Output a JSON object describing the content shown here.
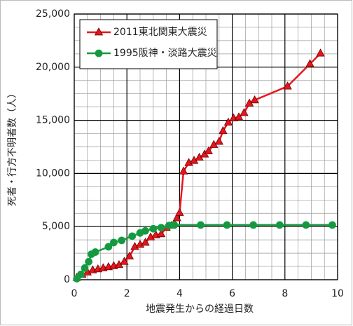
{
  "chart_data": {
    "type": "line",
    "x_label": "地震発生からの経過日数",
    "y_label": "死者・行方不明者数（人）",
    "xlim": [
      0,
      10
    ],
    "xticks": [
      0,
      2,
      4,
      6,
      8,
      10
    ],
    "ylim": [
      0,
      25000
    ],
    "yticks": [
      0,
      {
        "value": 5000,
        "label": "5,000"
      },
      {
        "value": 10000,
        "label": "10,000"
      },
      {
        "value": 15000,
        "label": "15,000"
      },
      {
        "value": 20000,
        "label": "20,000"
      },
      {
        "value": 25000,
        "label": "25,000"
      }
    ],
    "grid": true,
    "legend": "upper left",
    "series": [
      {
        "name": "2011東北関東大震災",
        "color": "#e8141c",
        "marker": "triangle",
        "x": [
          0.1,
          0.3,
          0.5,
          0.7,
          0.9,
          1.1,
          1.3,
          1.5,
          1.7,
          1.9,
          2.1,
          2.3,
          2.5,
          2.7,
          2.9,
          3.1,
          3.3,
          3.5,
          3.7,
          3.9,
          4.0,
          4.15,
          4.35,
          4.55,
          4.75,
          4.95,
          5.1,
          5.3,
          5.5,
          5.65,
          5.85,
          6.05,
          6.25,
          6.45,
          6.65,
          6.85,
          8.1,
          8.95,
          9.35
        ],
        "values": [
          200,
          500,
          700,
          900,
          1000,
          1100,
          1200,
          1300,
          1400,
          1700,
          2200,
          3100,
          3300,
          3500,
          4000,
          4200,
          4300,
          4900,
          5100,
          5800,
          6300,
          10200,
          11000,
          11200,
          11500,
          11800,
          12100,
          12700,
          13000,
          14000,
          14800,
          15200,
          15300,
          15700,
          16600,
          16900,
          18200,
          20300,
          21300
        ]
      },
      {
        "name": "1995阪神・淡路大震災",
        "color": "#1a9641",
        "marker": "circle",
        "x": [
          0.1,
          0.25,
          0.4,
          0.55,
          0.65,
          0.8,
          1.3,
          1.5,
          1.8,
          2.2,
          2.5,
          2.7,
          3.0,
          3.3,
          3.6,
          3.8,
          4.8,
          5.8,
          6.8,
          7.8,
          8.8,
          9.8
        ],
        "values": [
          100,
          500,
          1100,
          1700,
          2400,
          2600,
          3100,
          3500,
          3700,
          4100,
          4400,
          4600,
          4800,
          4900,
          5100,
          5150,
          5150,
          5150,
          5150,
          5150,
          5150,
          5150
        ]
      }
    ]
  }
}
